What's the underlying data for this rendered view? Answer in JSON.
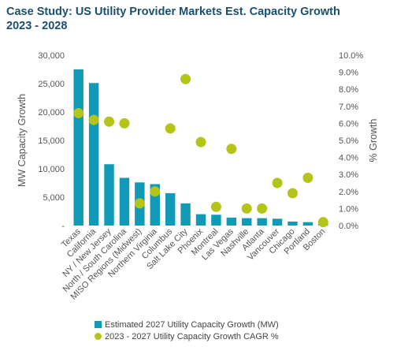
{
  "chart_data": {
    "type": "bar",
    "title_line1": "Case Study: US Utility Provider Markets Est. Capacity Growth",
    "title_line2": "2023 - 2028",
    "ylabel_left": "MW Capacity Growth",
    "ylabel_right": "% Growth",
    "categories": [
      "Texas",
      "California",
      "NY / New Jersey",
      "North / South Carolina",
      "MISO Regions (Midwest)",
      "Northern Virginia",
      "Columbus",
      "Salt Lake City",
      "Phoenix",
      "Montreal",
      "Las Vegas",
      "Nashville",
      "Atlanta",
      "Vancouver",
      "Chicago",
      "Portland",
      "Boston"
    ],
    "ylim_left": [
      0,
      30000
    ],
    "ylim_right": [
      0,
      10
    ],
    "left_ticks": [
      "-",
      "5,000",
      "10,000",
      "15,000",
      "20,000",
      "25,000",
      "30,000"
    ],
    "right_ticks": [
      "0.0%",
      "1.0%",
      "2.0%",
      "3.0%",
      "4.0%",
      "5.0%",
      "6.0%",
      "7.0%",
      "8.0%",
      "9.0%",
      "10.0%"
    ],
    "series": [
      {
        "name": "Estimated 2027 Utility Capacity Growth (MW)",
        "kind": "bar",
        "axis": "left",
        "color": "#1199b8",
        "values": [
          27500,
          25100,
          10800,
          8400,
          7600,
          7300,
          5700,
          3900,
          2000,
          1900,
          1400,
          1300,
          1300,
          1200,
          700,
          600,
          300
        ]
      },
      {
        "name": "2023 - 2027 Utility Capacity Growth CAGR %",
        "kind": "scatter",
        "axis": "right",
        "color": "#b5c418",
        "values": [
          6.6,
          6.2,
          6.1,
          6.0,
          1.3,
          2.0,
          5.7,
          8.6,
          4.9,
          1.1,
          4.5,
          1.0,
          1.0,
          2.5,
          1.9,
          2.8,
          0.2
        ]
      }
    ]
  }
}
